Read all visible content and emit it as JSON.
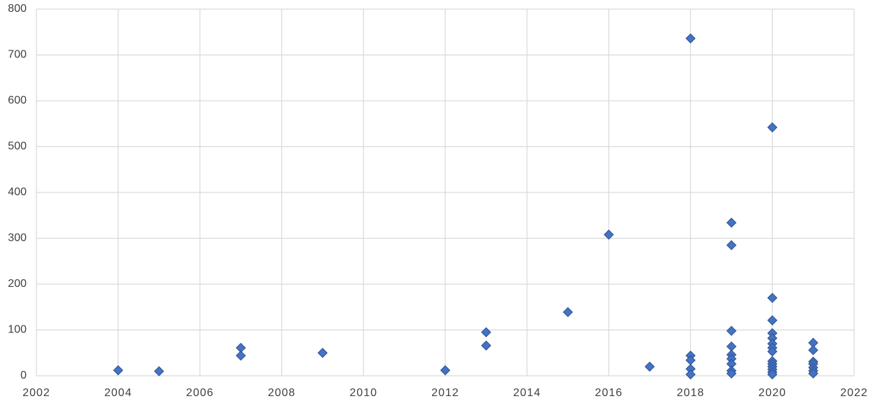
{
  "chart_data": {
    "type": "scatter",
    "x": [
      2004,
      2005,
      2007,
      2007,
      2009,
      2012,
      2013,
      2013,
      2015,
      2016,
      2017,
      2018,
      2018,
      2018,
      2018,
      2018,
      2019,
      2019,
      2019,
      2019,
      2019,
      2019,
      2019,
      2019,
      2019,
      2020,
      2020,
      2020,
      2020,
      2020,
      2020,
      2020,
      2020,
      2020,
      2020,
      2020,
      2020,
      2020,
      2020,
      2021,
      2021,
      2021,
      2021,
      2021,
      2021,
      2021
    ],
    "values": [
      12,
      10,
      61,
      44,
      50,
      12,
      95,
      66,
      139,
      308,
      20,
      736,
      44,
      34,
      15,
      3,
      334,
      285,
      98,
      64,
      46,
      37,
      26,
      11,
      5,
      542,
      170,
      121,
      93,
      82,
      70,
      61,
      53,
      32,
      26,
      20,
      14,
      8,
      3,
      72,
      56,
      31,
      26,
      18,
      11,
      5
    ],
    "color": "#4472c4",
    "xlim": [
      2002,
      2022
    ],
    "xticks": [
      2002,
      2004,
      2006,
      2008,
      2010,
      2012,
      2014,
      2016,
      2018,
      2020,
      2022
    ],
    "ylim": [
      0,
      800
    ],
    "yticks": [
      0,
      100,
      200,
      300,
      400,
      500,
      600,
      700,
      800
    ],
    "grid": true
  }
}
